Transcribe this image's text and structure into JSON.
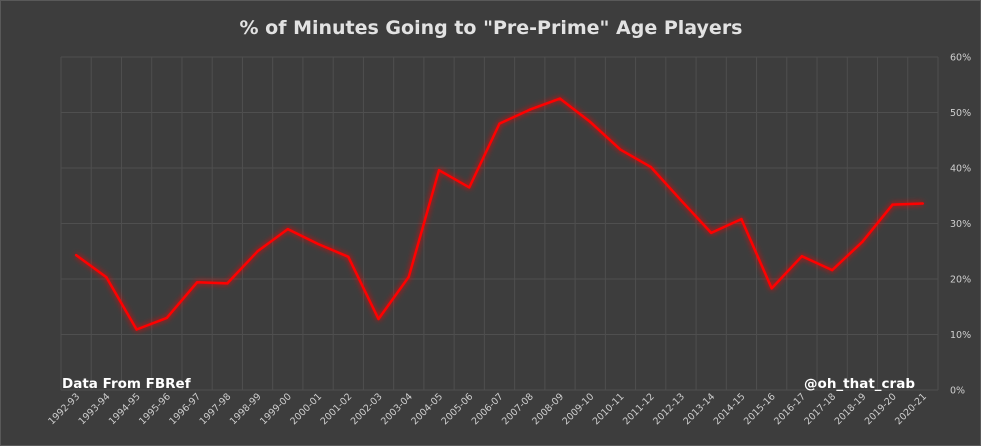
{
  "chart_data": {
    "type": "line",
    "title": "% of Minutes Going to \"Pre-Prime\" Age Players",
    "categories": [
      "1992-93",
      "1993-94",
      "1994-95",
      "1995-96",
      "1996-97",
      "1997-98",
      "1998-99",
      "1999-00",
      "2000-01",
      "2001-02",
      "2002-03",
      "2003-04",
      "2004-05",
      "2005-06",
      "2006-07",
      "2007-08",
      "2008-09",
      "2009-10",
      "2010-11",
      "2011-12",
      "2012-13",
      "2013-14",
      "2014-15",
      "2015-16",
      "2016-17",
      "2017-18",
      "2018-19",
      "2019-20",
      "2020-21"
    ],
    "values": [
      24.3,
      20.3,
      10.9,
      13.0,
      19.4,
      19.2,
      25.0,
      29.0,
      26.3,
      24.0,
      12.8,
      20.4,
      39.6,
      36.5,
      48.0,
      50.5,
      52.5,
      48.3,
      43.3,
      40.2,
      34.2,
      28.3,
      30.8,
      18.3,
      24.1,
      21.6,
      26.7,
      33.4,
      33.6
    ],
    "y_ticks": [
      "0%",
      "10%",
      "20%",
      "30%",
      "40%",
      "50%",
      "60%"
    ],
    "ylim": [
      0,
      60
    ],
    "grid": true,
    "line_color": "#ff0000"
  },
  "notes": {
    "source": "Data From FBRef",
    "credit": "@oh_that_crab"
  }
}
